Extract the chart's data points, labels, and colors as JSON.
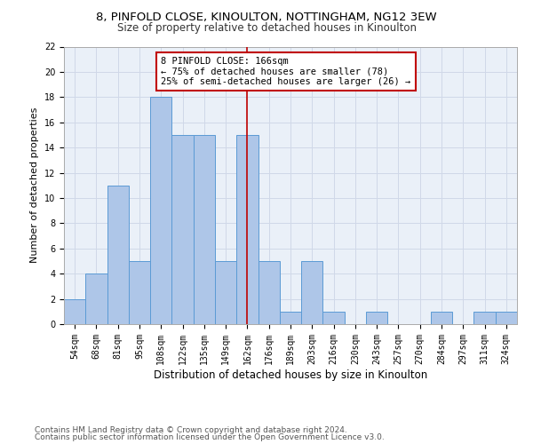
{
  "title1": "8, PINFOLD CLOSE, KINOULTON, NOTTINGHAM, NG12 3EW",
  "title2": "Size of property relative to detached houses in Kinoulton",
  "xlabel": "Distribution of detached houses by size in Kinoulton",
  "ylabel": "Number of detached properties",
  "footnote1": "Contains HM Land Registry data © Crown copyright and database right 2024.",
  "footnote2": "Contains public sector information licensed under the Open Government Licence v3.0.",
  "bar_labels": [
    "54sqm",
    "68sqm",
    "81sqm",
    "95sqm",
    "108sqm",
    "122sqm",
    "135sqm",
    "149sqm",
    "162sqm",
    "176sqm",
    "189sqm",
    "203sqm",
    "216sqm",
    "230sqm",
    "243sqm",
    "257sqm",
    "270sqm",
    "284sqm",
    "297sqm",
    "311sqm",
    "324sqm"
  ],
  "bar_values": [
    2,
    4,
    11,
    5,
    18,
    15,
    15,
    5,
    15,
    5,
    1,
    5,
    1,
    0,
    1,
    0,
    0,
    1,
    0,
    1,
    1
  ],
  "bar_color": "#aec6e8",
  "bar_edge_color": "#5b9bd5",
  "vline_x": 8,
  "vline_color": "#c00000",
  "annotation_line1": "8 PINFOLD CLOSE: 166sqm",
  "annotation_line2": "← 75% of detached houses are smaller (78)",
  "annotation_line3": "25% of semi-detached houses are larger (26) →",
  "annotation_box_color": "#ffffff",
  "annotation_box_edge": "#c00000",
  "ylim": [
    0,
    22
  ],
  "yticks": [
    0,
    2,
    4,
    6,
    8,
    10,
    12,
    14,
    16,
    18,
    20,
    22
  ],
  "grid_color": "#d0d8e8",
  "bg_color": "#eaf0f8",
  "title1_fontsize": 9.5,
  "title2_fontsize": 8.5,
  "xlabel_fontsize": 8.5,
  "ylabel_fontsize": 8,
  "tick_fontsize": 7,
  "footnote_fontsize": 6.5,
  "annotation_fontsize": 7.5
}
